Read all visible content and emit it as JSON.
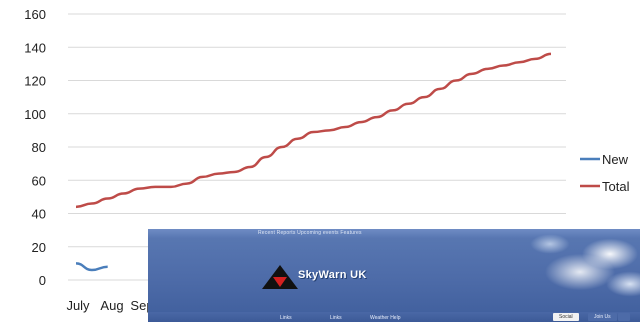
{
  "chart_data": {
    "type": "line",
    "title": "",
    "xlabel": "",
    "ylabel": "",
    "ylim": [
      0,
      160
    ],
    "yticks": [
      0,
      20,
      40,
      60,
      80,
      100,
      120,
      140,
      160
    ],
    "grid": "horizontal",
    "legend_position": "right",
    "x_visible_labels": [
      "July",
      "Aug",
      "Sep"
    ],
    "series": [
      {
        "name": "New",
        "color": "#4a7ebb",
        "values": [
          10,
          6,
          8,
          null,
          null,
          null,
          null,
          null,
          null,
          null,
          null,
          null,
          null,
          null,
          null,
          null,
          null,
          null,
          null,
          null,
          null,
          null,
          null,
          null,
          null,
          null,
          null,
          null,
          null,
          null,
          null
        ]
      },
      {
        "name": "Total",
        "color": "#be4b48",
        "values": [
          44,
          46,
          49,
          52,
          55,
          56,
          56,
          58,
          62,
          64,
          65,
          68,
          74,
          80,
          85,
          89,
          90,
          92,
          95,
          98,
          102,
          106,
          110,
          115,
          120,
          124,
          127,
          129,
          131,
          133,
          136
        ]
      }
    ]
  },
  "banner": {
    "top_links": "Recent Reports  Upcoming events  Features",
    "brand": "SkyWarn UK",
    "nav_items": [
      "Links",
      "Links",
      "Weather Help"
    ],
    "buttons": [
      "Social",
      "Join Us",
      ""
    ]
  }
}
